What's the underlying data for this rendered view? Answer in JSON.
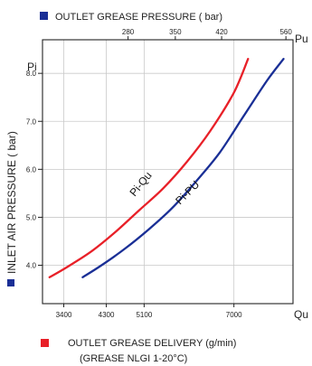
{
  "chart_data": {
    "type": "line",
    "top_legend": {
      "text": "OUTLET GREASE PRESSURE ( bar)",
      "color": "#1a2f96"
    },
    "left_title": {
      "text": "INLET AIR PRESSURE ( bar)",
      "color": "#1a2f96"
    },
    "bottom_legend": {
      "line1": "OUTLET GREASE DELIVERY (g/min)",
      "line2": "(GREASE NLGI 1-20°C)",
      "color": "#e82028"
    },
    "x_axis_symbol": "Qu",
    "y_axis_symbol": "Pi",
    "top_axis_symbol": "Pu",
    "x_ticks": [
      {
        "value": 3400,
        "label": "3400"
      },
      {
        "value": 4300,
        "label": "4300"
      },
      {
        "value": 5100,
        "label": "5100"
      },
      {
        "value": 7000,
        "label": "7000"
      }
    ],
    "top_ticks": [
      {
        "value": 4760,
        "label": "280"
      },
      {
        "value": 5760,
        "label": "350"
      },
      {
        "value": 6740,
        "label": "420"
      },
      {
        "value": 8100,
        "label": "560"
      }
    ],
    "y_ticks": [
      {
        "value": 4.0,
        "label": "4.0"
      },
      {
        "value": 5.0,
        "label": "5.0"
      },
      {
        "value": 6.0,
        "label": "6.0"
      },
      {
        "value": 7.0,
        "label": "7.0"
      },
      {
        "value": 8.0,
        "label": "8.0"
      }
    ],
    "xlim": [
      2950,
      8250
    ],
    "ylim": [
      3.2,
      8.7
    ],
    "grid": true,
    "series": [
      {
        "name": "Pi-Qu",
        "color": "#e82028",
        "x": [
          3100,
          3500,
          4000,
          4500,
          5000,
          5500,
          6000,
          6500,
          7000,
          7300
        ],
        "y": [
          3.75,
          3.98,
          4.3,
          4.7,
          5.15,
          5.6,
          6.15,
          6.8,
          7.6,
          8.3
        ]
      },
      {
        "name": "Pi-PU",
        "color": "#1a2f96",
        "x": [
          3800,
          4200,
          4700,
          5200,
          5700,
          6200,
          6700,
          7200,
          7700,
          8050
        ],
        "y": [
          3.75,
          4.0,
          4.35,
          4.75,
          5.2,
          5.75,
          6.35,
          7.1,
          7.85,
          8.3
        ]
      }
    ]
  }
}
